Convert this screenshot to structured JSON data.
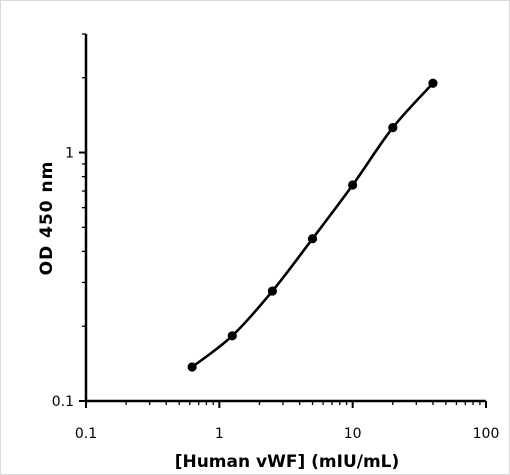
{
  "chart_data": {
    "type": "line",
    "title": "",
    "xlabel": "[Human vWF] (mIU/mL)",
    "ylabel": "OD 450 nm",
    "xscale": "log",
    "yscale": "log",
    "xlim": [
      0.1,
      100
    ],
    "ylim": [
      0.1,
      3
    ],
    "x_ticks": [
      "0.1",
      "1",
      "10",
      "100"
    ],
    "y_ticks": [
      "0.1",
      "1"
    ],
    "grid": false,
    "legend": "none",
    "series": [
      {
        "x": [
          0.625,
          1.25,
          2.5,
          5,
          10,
          20,
          40
        ],
        "y": [
          0.137,
          0.183,
          0.277,
          0.45,
          0.74,
          1.26,
          1.9
        ]
      }
    ]
  }
}
